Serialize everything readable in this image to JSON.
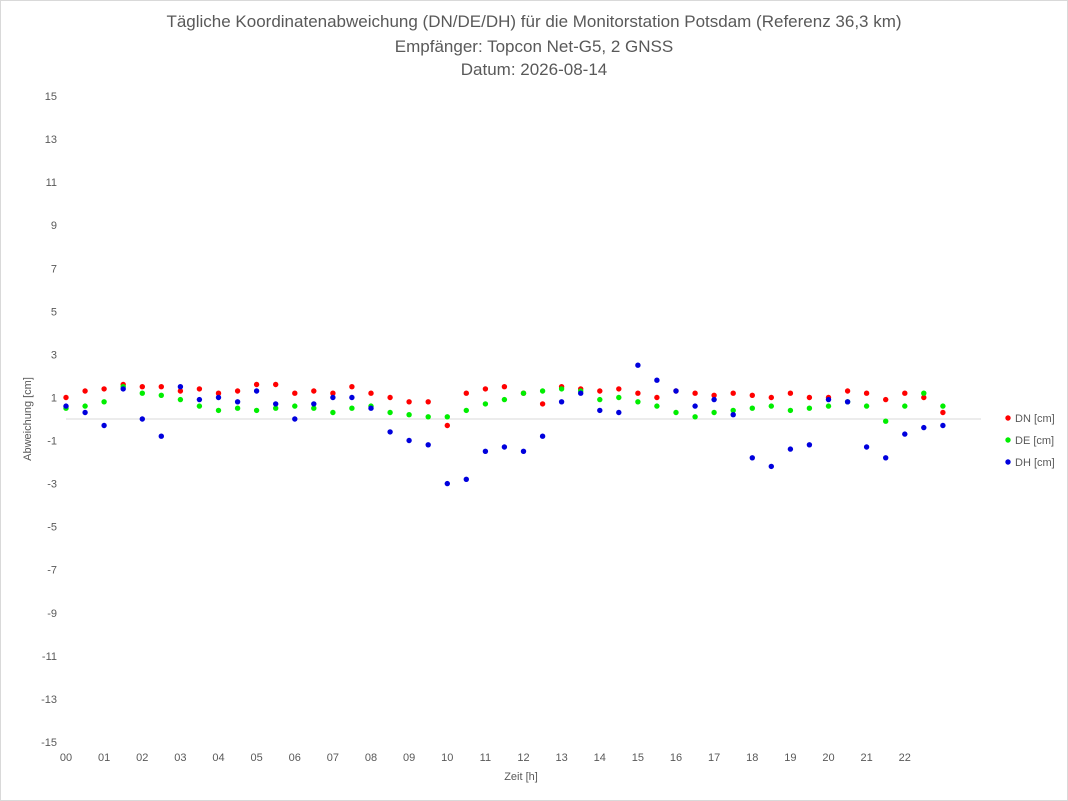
{
  "chart_data": {
    "type": "scatter",
    "title": "Tägliche Koordinatenabweichung (DN/DE/DH) für die Monitorstation Potsdam (Referenz 36,3 km)",
    "subtitle": "Empfänger: Topcon Net-G5, 2 GNSS",
    "date_line": "Datum: 2026-08-14",
    "xlabel": "Zeit [h]",
    "ylabel": "Abweichung [cm]",
    "xlim": [
      0,
      24
    ],
    "ylim": [
      -15,
      15
    ],
    "x_tick_labels": [
      "00",
      "01",
      "02",
      "03",
      "04",
      "05",
      "06",
      "07",
      "08",
      "09",
      "10",
      "11",
      "12",
      "13",
      "14",
      "15",
      "16",
      "17",
      "18",
      "19",
      "20",
      "21",
      "22"
    ],
    "y_ticks": [
      15,
      13,
      11,
      9,
      7,
      5,
      3,
      1,
      -1,
      -3,
      -5,
      -7,
      -9,
      -11,
      -13,
      -15
    ],
    "legend_position": "right",
    "grid": false,
    "series": [
      {
        "name": "DN [cm]",
        "color": "#ff0000",
        "x": [
          0.0,
          0.5,
          1.0,
          1.5,
          2.0,
          2.5,
          3.0,
          3.5,
          4.0,
          4.5,
          5.0,
          5.5,
          6.0,
          6.5,
          7.0,
          7.5,
          8.0,
          8.5,
          9.0,
          9.5,
          10.0,
          10.5,
          11.0,
          11.5,
          12.0,
          12.5,
          13.0,
          13.5,
          14.0,
          14.5,
          15.0,
          15.5,
          16.0,
          16.5,
          17.0,
          17.5,
          18.0,
          18.5,
          19.0,
          19.5,
          20.0,
          20.5,
          21.0,
          21.5,
          22.0,
          22.5,
          23.0
        ],
        "y": [
          1.0,
          1.3,
          1.4,
          1.6,
          1.5,
          1.5,
          1.3,
          1.4,
          1.2,
          1.3,
          1.6,
          1.6,
          1.2,
          1.3,
          1.2,
          1.5,
          1.2,
          1.0,
          0.8,
          0.8,
          -0.3,
          1.2,
          1.4,
          1.5,
          1.2,
          0.7,
          1.5,
          1.4,
          1.3,
          1.4,
          1.2,
          1.0,
          1.3,
          1.2,
          1.1,
          1.2,
          1.1,
          1.0,
          1.2,
          1.0,
          1.0,
          1.3,
          1.2,
          0.9,
          1.2,
          1.0,
          0.3
        ]
      },
      {
        "name": "DE [cm]",
        "color": "#00ee00",
        "x": [
          0.0,
          0.5,
          1.0,
          1.5,
          2.0,
          2.5,
          3.0,
          3.5,
          4.0,
          4.5,
          5.0,
          5.5,
          6.0,
          6.5,
          7.0,
          7.5,
          8.0,
          8.5,
          9.0,
          9.5,
          10.0,
          10.5,
          11.0,
          11.5,
          12.0,
          12.5,
          13.0,
          13.5,
          14.0,
          14.5,
          15.0,
          15.5,
          16.0,
          16.5,
          17.0,
          17.5,
          18.0,
          18.5,
          19.0,
          19.5,
          20.0,
          20.5,
          21.0,
          21.5,
          22.0,
          22.5,
          23.0
        ],
        "y": [
          0.5,
          0.6,
          0.8,
          1.5,
          1.2,
          1.1,
          0.9,
          0.6,
          0.4,
          0.5,
          0.4,
          0.5,
          0.6,
          0.5,
          0.3,
          0.5,
          0.6,
          0.3,
          0.2,
          0.1,
          0.1,
          0.4,
          0.7,
          0.9,
          1.2,
          1.3,
          1.4,
          1.3,
          0.9,
          1.0,
          0.8,
          0.6,
          0.3,
          0.1,
          0.3,
          0.4,
          0.5,
          0.6,
          0.4,
          0.5,
          0.6,
          0.8,
          0.6,
          -0.1,
          0.6,
          1.2,
          0.6
        ]
      },
      {
        "name": "DH [cm]",
        "color": "#0000dd",
        "x": [
          0.0,
          0.5,
          1.0,
          1.5,
          2.0,
          2.5,
          3.0,
          3.5,
          4.0,
          4.5,
          5.0,
          5.5,
          6.0,
          6.5,
          7.0,
          7.5,
          8.0,
          8.5,
          9.0,
          9.5,
          10.0,
          10.5,
          11.0,
          11.5,
          12.0,
          12.5,
          13.0,
          13.5,
          14.0,
          14.5,
          15.0,
          15.5,
          16.0,
          16.5,
          17.0,
          17.5,
          18.0,
          18.5,
          19.0,
          19.5,
          20.0,
          20.5,
          21.0,
          21.5,
          22.0,
          22.5,
          23.0
        ],
        "y": [
          0.6,
          0.3,
          -0.3,
          1.4,
          0.0,
          -0.8,
          1.5,
          0.9,
          1.0,
          0.8,
          1.3,
          0.7,
          0.0,
          0.7,
          1.0,
          1.0,
          0.5,
          -0.6,
          -1.0,
          -1.2,
          -3.0,
          -2.8,
          -1.5,
          -1.3,
          -1.5,
          -0.8,
          0.8,
          1.2,
          0.4,
          0.3,
          2.5,
          1.8,
          1.3,
          0.6,
          0.9,
          0.2,
          -1.8,
          -2.2,
          -1.4,
          -1.2,
          0.9,
          0.8,
          -1.3,
          -1.8,
          -0.7,
          -0.4,
          -0.3
        ]
      }
    ]
  }
}
